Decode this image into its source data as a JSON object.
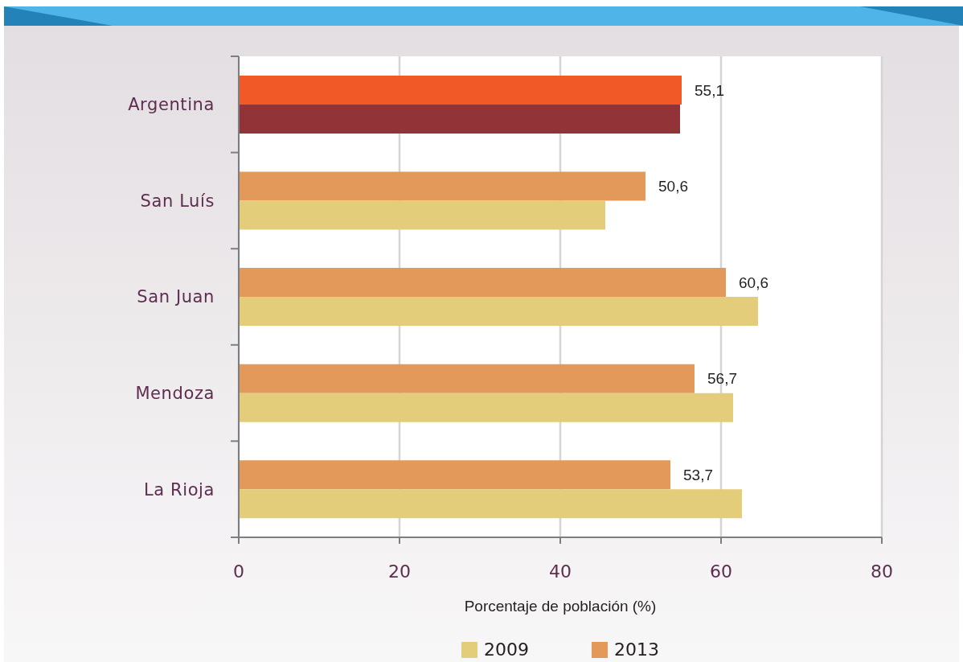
{
  "chart_data": {
    "type": "bar",
    "orientation": "horizontal",
    "categories": [
      "Argentina",
      "San Luís",
      "San Juan",
      "Mendoza",
      "La Rioja"
    ],
    "series": [
      {
        "name": "2009",
        "color": "#e3cd7a",
        "colors": [
          "#913337",
          "#e3cd7a",
          "#e3cd7a",
          "#e3cd7a",
          "#e3cd7a"
        ],
        "values": [
          54.9,
          45.6,
          64.6,
          61.5,
          62.6
        ]
      },
      {
        "name": "2013",
        "color": "#e2995a",
        "colors": [
          "#f15a26",
          "#e2995a",
          "#e2995a",
          "#e2995a",
          "#e2995a"
        ],
        "values": [
          55.1,
          50.6,
          60.6,
          56.7,
          53.7
        ],
        "value_labels": [
          "55,1",
          "50,6",
          "60,6",
          "56,7",
          "53,7"
        ]
      }
    ],
    "xlabel": "Porcentaje de población (%)",
    "xlim": [
      0,
      80
    ],
    "xticks": [
      0,
      20,
      40,
      60,
      80
    ],
    "grid": "x",
    "legend": "bottom"
  }
}
